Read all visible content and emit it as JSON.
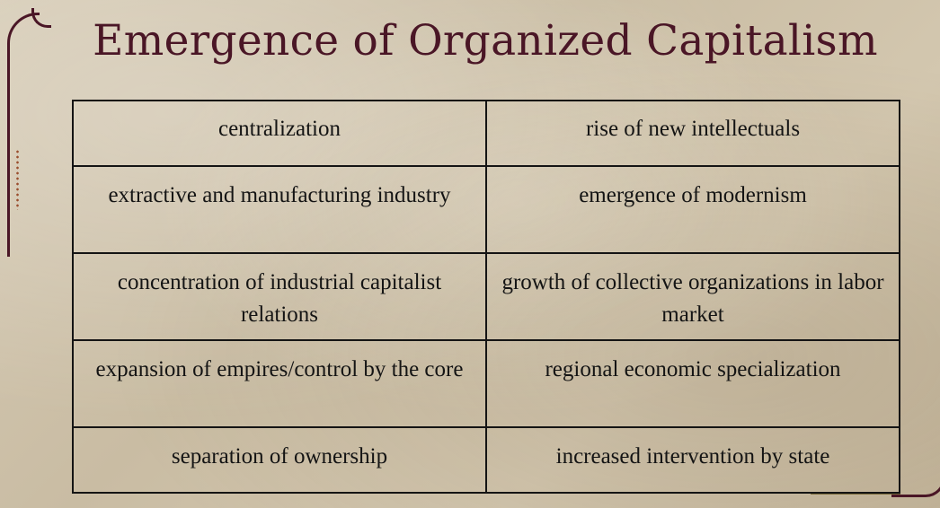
{
  "slide": {
    "title": "Emergence of Organized Capitalism"
  },
  "table": {
    "rows": [
      [
        "centralization",
        "rise of new intellectuals"
      ],
      [
        "extractive and manufacturing industry",
        "emergence of modernism"
      ],
      [
        "concentration of industrial capitalist relations",
        "growth of collective organizations in labor market"
      ],
      [
        "expansion of empires/control by the core",
        "regional economic specialization"
      ],
      [
        "separation of ownership",
        "increased intervention by state"
      ]
    ]
  },
  "theme": {
    "title_color": "#4a1626",
    "text_color": "#141414",
    "background": "#cfc3ac",
    "accent_dots": "#9a4e2e"
  }
}
